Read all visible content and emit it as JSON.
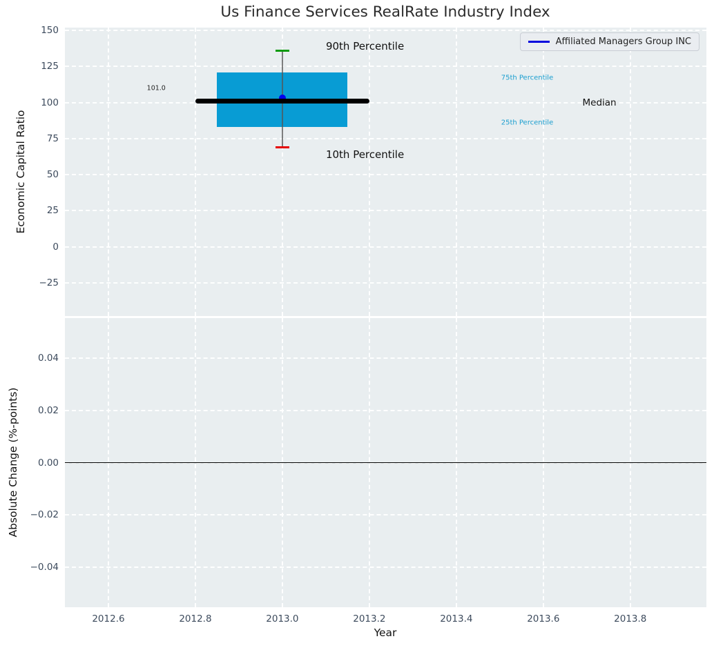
{
  "figure": {
    "bg": "#ffffff",
    "plot_bg": "#e9eef0",
    "grid_color": "rgba(255,255,255,0.95)",
    "tick_color": "#3c4a5c",
    "text_color": "#111111"
  },
  "chart_data": [
    {
      "type": "box",
      "title": "Us Finance Services RealRate Industry Index",
      "xlabel": "Year",
      "ylabel": "Economic Capital Ratio",
      "xlim": [
        2012.5,
        2013.975
      ],
      "ylim": [
        -48,
        152
      ],
      "grid": true,
      "xticks": [
        2012.6,
        2012.8,
        2013.0,
        2013.2,
        2013.4,
        2013.6,
        2013.8
      ],
      "xticklabels": null,
      "yticks": [
        150,
        125,
        100,
        75,
        50,
        25,
        0,
        -25
      ],
      "yticklabels": [
        "150",
        "125",
        "100",
        "75",
        "50",
        "25",
        "0",
        "−25"
      ],
      "legend": {
        "label": "Affiliated Managers Group INC",
        "position": "upper right",
        "line_color": "#0000dd"
      },
      "box": {
        "x": 2013,
        "p90": 136,
        "p75": 121,
        "median": 101,
        "p25": 83,
        "p10": 69,
        "company_value": 103,
        "box_halfwidth": 0.15,
        "median_halfwidth": 0.2,
        "cap_halfwidth": 0.016,
        "box_color": "#089cd4",
        "median_color": "#000000",
        "whisker_color": "rgba(85,85,85,0.75)",
        "cap_top_color": "#0a9a0a",
        "cap_bottom_color": "#e60000",
        "dot_color": "#0000ee"
      },
      "annotations": [
        {
          "text": "90th Percentile",
          "x": 2013.19,
          "y": 139,
          "anchor": "center",
          "color": "#111111",
          "size": 15
        },
        {
          "text": "10th Percentile",
          "x": 2013.19,
          "y": 64,
          "anchor": "center",
          "color": "#111111",
          "size": 15
        },
        {
          "text": "75th Percentile",
          "x": 2013.503,
          "y": 117,
          "anchor": "left",
          "color": "#1a9ecf",
          "size": 10
        },
        {
          "text": "25th Percentile",
          "x": 2013.503,
          "y": 86,
          "anchor": "left",
          "color": "#1a9ecf",
          "size": 10
        },
        {
          "text": "Median",
          "x": 2013.69,
          "y": 100,
          "anchor": "left",
          "color": "#111111",
          "size": 13.5
        },
        {
          "text": "101.0",
          "x": 2012.71,
          "y": 110,
          "anchor": "center",
          "color": "#222222",
          "size": 9.5
        }
      ]
    },
    {
      "type": "line",
      "xlabel": "Year",
      "ylabel": "Absolute Change (%-points)",
      "xlim": [
        2012.5,
        2013.975
      ],
      "ylim": [
        -0.0553,
        0.0553
      ],
      "grid": true,
      "xticks": [
        2012.6,
        2012.8,
        2013.0,
        2013.2,
        2013.4,
        2013.6,
        2013.8
      ],
      "xticklabels": [
        "2012.6",
        "2012.8",
        "2013.0",
        "2013.2",
        "2013.4",
        "2013.6",
        "2013.8"
      ],
      "yticks": [
        0.04,
        0.02,
        0.0,
        -0.02,
        -0.04
      ],
      "yticklabels": [
        "0.04",
        "0.02",
        "0.00",
        "−0.02",
        "−0.04"
      ],
      "zero_line": 0.0,
      "zero_line_color": "#000000"
    }
  ]
}
